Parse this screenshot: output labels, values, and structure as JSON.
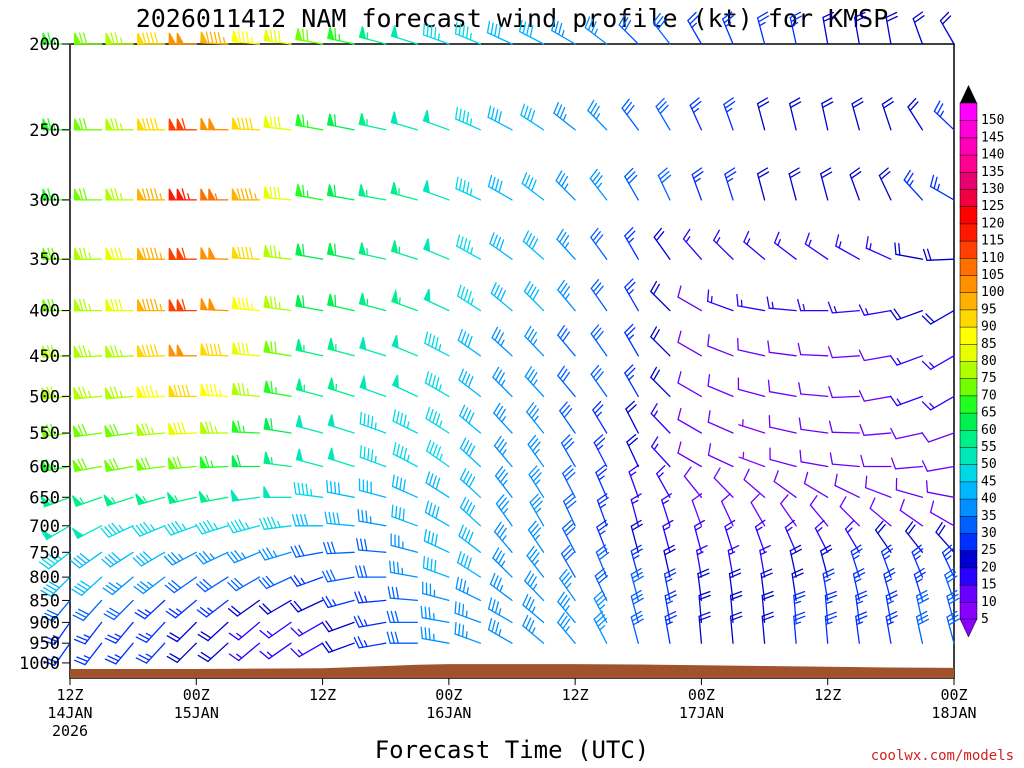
{
  "chart_data": {
    "type": "wind_profile",
    "title": "2026011412 NAM forecast wind profile (kt) for KMSP",
    "xlabel": "Forecast Time (UTC)",
    "credit": "coolwx.com/models",
    "y_axis": {
      "scale": "log",
      "range_hpa": [
        1040,
        200
      ],
      "tick_labels": [
        "200",
        "250",
        "300",
        "350",
        "400",
        "450",
        "500",
        "550",
        "600",
        "650",
        "700",
        "750",
        "800",
        "850",
        "900",
        "950",
        "1000"
      ],
      "tick_values": [
        200,
        250,
        300,
        350,
        400,
        450,
        500,
        550,
        600,
        650,
        700,
        750,
        800,
        850,
        900,
        950,
        1000
      ]
    },
    "x_axis": {
      "range_hours": [
        0,
        84
      ],
      "ticks": [
        {
          "hour": 0,
          "line1": "12Z",
          "line2": "14JAN",
          "line3": "2026"
        },
        {
          "hour": 12,
          "line1": "00Z",
          "line2": "15JAN",
          "line3": ""
        },
        {
          "hour": 24,
          "line1": "12Z",
          "line2": "",
          "line3": ""
        },
        {
          "hour": 36,
          "line1": "00Z",
          "line2": "16JAN",
          "line3": ""
        },
        {
          "hour": 48,
          "line1": "12Z",
          "line2": "",
          "line3": ""
        },
        {
          "hour": 60,
          "line1": "00Z",
          "line2": "17JAN",
          "line3": ""
        },
        {
          "hour": 72,
          "line1": "12Z",
          "line2": "",
          "line3": ""
        },
        {
          "hour": 84,
          "line1": "00Z",
          "line2": "18JAN",
          "line3": ""
        }
      ]
    },
    "colorbar": {
      "labels": [
        "5",
        "10",
        "15",
        "20",
        "25",
        "30",
        "35",
        "40",
        "45",
        "50",
        "55",
        "60",
        "65",
        "70",
        "75",
        "80",
        "85",
        "90",
        "95",
        "100",
        "105",
        "110",
        "115",
        "120",
        "125",
        "130",
        "135",
        "140",
        "145",
        "150"
      ],
      "colors": [
        "#8a00ff",
        "#6a00ff",
        "#2a00ff",
        "#0000d0",
        "#0030ff",
        "#0060ff",
        "#0090ff",
        "#00b8ff",
        "#00d8e8",
        "#00e8b8",
        "#00f088",
        "#00f050",
        "#20ff20",
        "#70ff00",
        "#b0ff00",
        "#e8ff00",
        "#ffff00",
        "#ffd800",
        "#ffb000",
        "#ff9000",
        "#ff7000",
        "#ff4000",
        "#ff1800",
        "#ff0000",
        "#f00040",
        "#e80070",
        "#ff0090",
        "#ff00b8",
        "#ff00d8",
        "#ff00ff"
      ]
    },
    "surface_pressure": {
      "hours": [
        0,
        6,
        12,
        18,
        24,
        27,
        30,
        33,
        36,
        42,
        48,
        54,
        60,
        66,
        72,
        78,
        84
      ],
      "values": [
        1016,
        1016,
        1016,
        1015,
        1014,
        1011,
        1008,
        1005,
        1003,
        1003,
        1003,
        1004,
        1006,
        1008,
        1010,
        1012,
        1013
      ]
    },
    "profile_levels_hpa": [
      200,
      250,
      300,
      350,
      400,
      450,
      500,
      550,
      600,
      650,
      700,
      750,
      800,
      850,
      900,
      950
    ],
    "wind_key_levels_hpa": [
      200,
      300,
      400,
      500,
      600,
      700,
      800,
      900
    ],
    "wind_key_hours": [
      0,
      6,
      12,
      18,
      24,
      30,
      36,
      42,
      48,
      54,
      60,
      66,
      72,
      78,
      84
    ],
    "wind_dir_deg": [
      [
        270,
        270,
        270,
        275,
        280,
        285,
        290,
        295,
        300,
        315,
        330,
        345,
        350,
        350,
        330
      ],
      [
        270,
        270,
        270,
        270,
        280,
        280,
        290,
        300,
        315,
        330,
        340,
        345,
        345,
        335,
        300
      ],
      [
        270,
        270,
        270,
        275,
        280,
        285,
        295,
        310,
        320,
        330,
        300,
        280,
        270,
        260,
        240
      ],
      [
        265,
        265,
        270,
        275,
        285,
        290,
        300,
        315,
        320,
        330,
        300,
        285,
        275,
        260,
        240
      ],
      [
        260,
        260,
        265,
        270,
        285,
        290,
        305,
        320,
        330,
        335,
        300,
        290,
        280,
        270,
        260
      ],
      [
        240,
        245,
        250,
        255,
        270,
        280,
        300,
        325,
        335,
        345,
        340,
        330,
        320,
        310,
        300
      ],
      [
        225,
        230,
        235,
        240,
        250,
        270,
        290,
        315,
        330,
        345,
        350,
        350,
        345,
        340,
        335
      ],
      [
        215,
        220,
        225,
        230,
        240,
        260,
        280,
        300,
        320,
        345,
        355,
        355,
        355,
        350,
        345
      ]
    ],
    "wind_speed_kt": [
      [
        65,
        75,
        100,
        85,
        70,
        55,
        45,
        40,
        35,
        30,
        25,
        25,
        20,
        20,
        20
      ],
      [
        65,
        75,
        115,
        95,
        65,
        55,
        50,
        40,
        35,
        30,
        25,
        20,
        20,
        20,
        25
      ],
      [
        70,
        80,
        110,
        85,
        60,
        55,
        50,
        40,
        35,
        25,
        10,
        15,
        15,
        15,
        20
      ],
      [
        75,
        75,
        90,
        75,
        55,
        50,
        45,
        35,
        30,
        25,
        10,
        10,
        10,
        10,
        15
      ],
      [
        65,
        70,
        70,
        60,
        50,
        45,
        45,
        35,
        30,
        20,
        10,
        5,
        10,
        10,
        10
      ],
      [
        50,
        45,
        45,
        45,
        40,
        35,
        40,
        35,
        30,
        15,
        10,
        10,
        10,
        10,
        10
      ],
      [
        40,
        35,
        30,
        30,
        25,
        30,
        40,
        35,
        30,
        25,
        15,
        15,
        20,
        25,
        25
      ],
      [
        25,
        25,
        20,
        15,
        15,
        25,
        35,
        35,
        35,
        30,
        20,
        20,
        25,
        25,
        30
      ]
    ]
  }
}
